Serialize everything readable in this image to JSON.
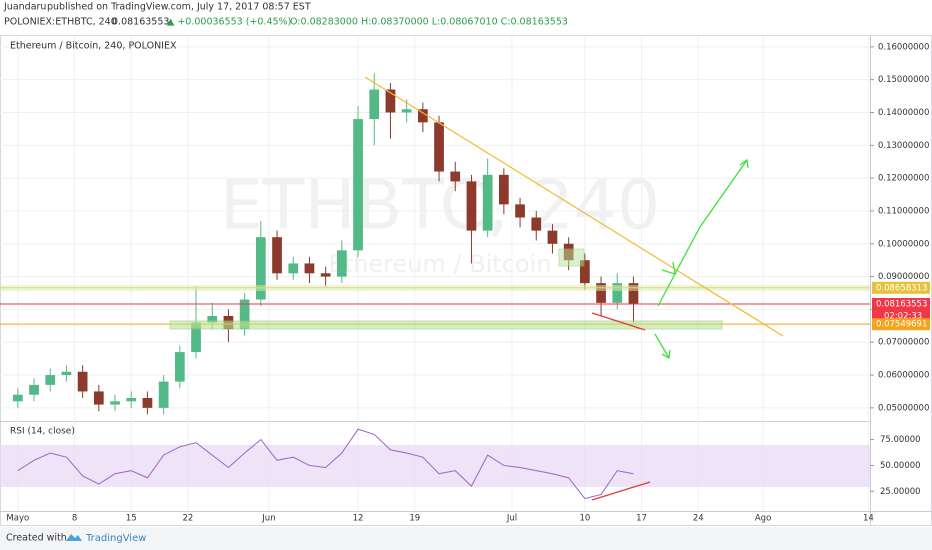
{
  "header": {
    "author": "Juandaru",
    "published": "published on TradingView.com, July 17, 2017 08:57 EST",
    "symbol": "POLONIEX:ETHBTC, 240",
    "last": "0.08163553",
    "change": "▲ +0.00036553 (+0.45%)",
    "ohlc": "O:0.08283000 H:0.08370000 L:0.08067010 C:0.08163553"
  },
  "chart_data": [
    {
      "type": "candlestick",
      "title": "Ethereum / Bitcoin, 240, POLONIEX",
      "watermark": "ETHBTC, 240",
      "watermark_sub": "Ethereum / Bitcoin",
      "up_color": "#53b987",
      "down_color": "#8b3a2b",
      "x": [
        0,
        2,
        4,
        6,
        8,
        10,
        12,
        14,
        16,
        18,
        20,
        22,
        24,
        26,
        28,
        30,
        32,
        34,
        36,
        38,
        40,
        42,
        44,
        46,
        48,
        50,
        52,
        54,
        56,
        58,
        60,
        62,
        64,
        66,
        68,
        70,
        72,
        74,
        76
      ],
      "open": [
        0.052,
        0.054,
        0.057,
        0.06,
        0.061,
        0.055,
        0.051,
        0.052,
        0.053,
        0.05,
        0.058,
        0.067,
        0.076,
        0.078,
        0.074,
        0.083,
        0.102,
        0.091,
        0.094,
        0.091,
        0.09,
        0.098,
        0.138,
        0.147,
        0.14,
        0.141,
        0.137,
        0.122,
        0.119,
        0.104,
        0.121,
        0.112,
        0.108,
        0.104,
        0.1,
        0.095,
        0.088,
        0.082,
        0.088
      ],
      "high": [
        0.056,
        0.059,
        0.062,
        0.063,
        0.063,
        0.057,
        0.054,
        0.055,
        0.055,
        0.06,
        0.069,
        0.087,
        0.082,
        0.08,
        0.085,
        0.107,
        0.104,
        0.096,
        0.096,
        0.093,
        0.101,
        0.142,
        0.152,
        0.149,
        0.144,
        0.143,
        0.139,
        0.125,
        0.121,
        0.126,
        0.123,
        0.114,
        0.11,
        0.106,
        0.102,
        0.097,
        0.09,
        0.091,
        0.09
      ],
      "low": [
        0.05,
        0.052,
        0.055,
        0.058,
        0.053,
        0.049,
        0.049,
        0.05,
        0.048,
        0.048,
        0.056,
        0.065,
        0.074,
        0.07,
        0.072,
        0.081,
        0.089,
        0.089,
        0.088,
        0.087,
        0.088,
        0.096,
        0.13,
        0.132,
        0.137,
        0.134,
        0.119,
        0.116,
        0.094,
        0.102,
        0.109,
        0.105,
        0.101,
        0.097,
        0.092,
        0.086,
        0.078,
        0.08,
        0.076
      ],
      "close": [
        0.054,
        0.057,
        0.06,
        0.061,
        0.055,
        0.051,
        0.052,
        0.053,
        0.05,
        0.058,
        0.067,
        0.076,
        0.078,
        0.074,
        0.083,
        0.102,
        0.091,
        0.094,
        0.091,
        0.09,
        0.098,
        0.138,
        0.147,
        0.14,
        0.141,
        0.137,
        0.122,
        0.119,
        0.104,
        0.121,
        0.112,
        0.108,
        0.104,
        0.1,
        0.095,
        0.088,
        0.082,
        0.088,
        0.0816
      ],
      "xlim": [
        -2.2,
        105.2
      ],
      "xticks": [
        {
          "value": 0,
          "label": "Mayo"
        },
        {
          "value": 7,
          "label": "8"
        },
        {
          "value": 14,
          "label": "15"
        },
        {
          "value": 21,
          "label": "22"
        },
        {
          "value": 31,
          "label": "Jun"
        },
        {
          "value": 42,
          "label": "12"
        },
        {
          "value": 49,
          "label": "19"
        },
        {
          "value": 61,
          "label": "Jul"
        },
        {
          "value": 70,
          "label": "10"
        },
        {
          "value": 77,
          "label": "17"
        },
        {
          "value": 84,
          "label": "24"
        },
        {
          "value": 92,
          "label": "Ago"
        },
        {
          "value": 105,
          "label": "14"
        }
      ],
      "ylim": [
        0.0463,
        0.1627
      ],
      "yticks": [
        {
          "value": 0.05,
          "label": "0.05000000"
        },
        {
          "value": 0.06,
          "label": "0.06000000"
        },
        {
          "value": 0.07,
          "label": "0.07000000"
        },
        {
          "value": 0.08,
          "label": "0.08000000"
        },
        {
          "value": 0.09,
          "label": "0.09000000"
        },
        {
          "value": 0.1,
          "label": "0.10000000"
        },
        {
          "value": 0.11,
          "label": "0.11000000"
        },
        {
          "value": 0.12,
          "label": "0.12000000"
        },
        {
          "value": 0.13,
          "label": "0.13000000"
        },
        {
          "value": 0.14,
          "label": "0.14000000"
        },
        {
          "value": 0.15,
          "label": "0.15000000"
        },
        {
          "value": 0.16,
          "label": "0.16000000"
        }
      ],
      "grid": true,
      "price_lines": [
        {
          "value": 0.08658313,
          "label": "0.08658313",
          "color": "#e8c13a"
        },
        {
          "value": 0.08163553,
          "label": "0.08163553",
          "color": "#f23645"
        },
        {
          "value": 0.07549691,
          "label": "0.07549691",
          "color": "#f7a21b"
        }
      ],
      "countdown": "02:02:33"
    },
    {
      "type": "line",
      "title": "RSI (14, close)",
      "color": "#9c64c4",
      "values": [
        45,
        55,
        62,
        58,
        40,
        32,
        42,
        45,
        38,
        60,
        68,
        72,
        60,
        48,
        62,
        75,
        55,
        58,
        50,
        48,
        62,
        85,
        80,
        65,
        62,
        58,
        42,
        45,
        30,
        60,
        50,
        48,
        45,
        42,
        38,
        18,
        22,
        45,
        42
      ],
      "ylim": [
        6,
        91
      ],
      "yticks": [
        {
          "value": 25,
          "label": "25.00000"
        },
        {
          "value": 50,
          "label": "50.00000"
        },
        {
          "value": 75,
          "label": "75.00000"
        }
      ]
    }
  ],
  "footer": {
    "created": "Created with",
    "brand": "TradingView"
  }
}
